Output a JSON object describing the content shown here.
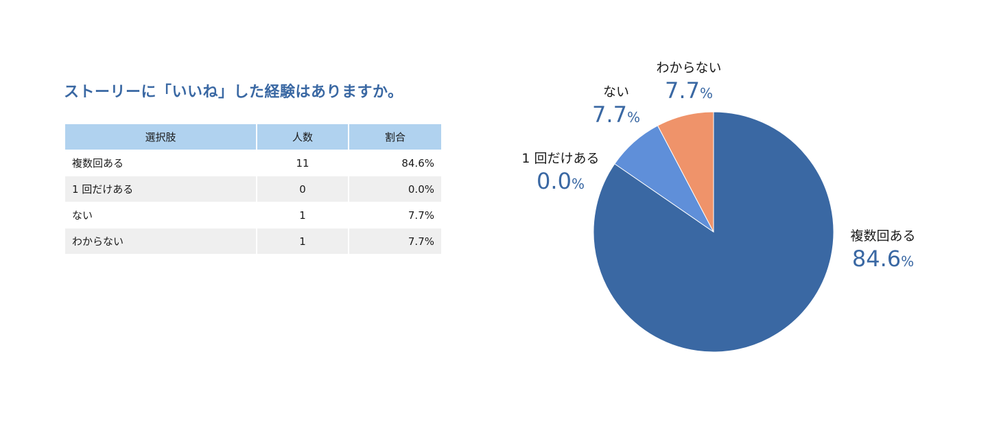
{
  "title": "ストーリーに「いいね」した経験はありますか。",
  "colors": {
    "accent": "#3a68a3",
    "header_bg": "#b0d2ef",
    "stripe": "#efefef",
    "row": "#ffffff"
  },
  "table": {
    "headers": [
      "選択肢",
      "人数",
      "割合"
    ],
    "rows": [
      {
        "choice": "複数回ある",
        "count": "11",
        "ratio": "84.6%"
      },
      {
        "choice": "1 回だけある",
        "count": "0",
        "ratio": "0.0%"
      },
      {
        "choice": "ない",
        "count": "1",
        "ratio": "7.7%"
      },
      {
        "choice": "わからない",
        "count": "1",
        "ratio": "7.7%"
      }
    ]
  },
  "chart_data": {
    "type": "pie",
    "title": "",
    "slices": [
      {
        "label": "複数回ある",
        "value": 84.6,
        "value_text": "84.6",
        "unit": "%",
        "color": "#3a68a3"
      },
      {
        "label": "1 回だけある",
        "value": 0.0,
        "value_text": "0.0",
        "unit": "%",
        "color": "#4f7fc7"
      },
      {
        "label": "ない",
        "value": 7.7,
        "value_text": "7.7",
        "unit": "%",
        "color": "#5f8fd9"
      },
      {
        "label": "わからない",
        "value": 7.7,
        "value_text": "7.7",
        "unit": "%",
        "color": "#ef936a"
      }
    ],
    "start_angle_deg": 0,
    "direction": "clockwise"
  }
}
